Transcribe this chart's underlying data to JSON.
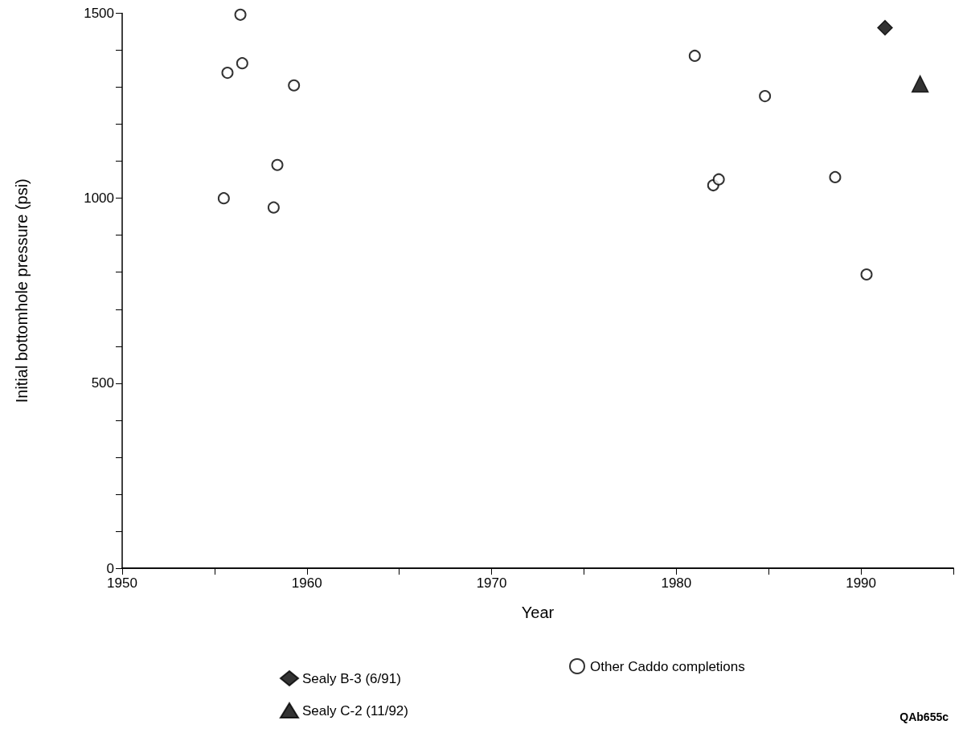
{
  "chart_data": {
    "type": "scatter",
    "xlabel": "Year",
    "ylabel": "Initial bottomhole pressure (psi)",
    "xlim": [
      1950,
      1995
    ],
    "xticks": [
      1950,
      {
        "value": 1955,
        "label": null
      },
      1960,
      {
        "value": 1965,
        "label": null
      },
      1970,
      {
        "value": 1975,
        "label": null
      },
      1980,
      {
        "value": 1985,
        "label": null
      },
      1990,
      {
        "value": 1995,
        "label": null
      }
    ],
    "ylim": [
      0,
      1500
    ],
    "yticks": [
      0,
      {
        "value": 100,
        "label": null
      },
      {
        "value": 200,
        "label": null
      },
      {
        "value": 300,
        "label": null
      },
      {
        "value": 400,
        "label": null
      },
      500,
      {
        "value": 600,
        "label": null
      },
      {
        "value": 700,
        "label": null
      },
      {
        "value": 800,
        "label": null
      },
      {
        "value": 900,
        "label": null
      },
      1000,
      {
        "value": 1100,
        "label": null
      },
      {
        "value": 1200,
        "label": null
      },
      {
        "value": 1300,
        "label": null
      },
      {
        "value": 1400,
        "label": null
      },
      1500
    ],
    "grid": false,
    "legend": "bottom",
    "series": [
      {
        "name": "Sealy B-3 (6/91)",
        "color": "#000000",
        "marker": "diamond",
        "x": [
          1991.3
        ],
        "values": [
          1461
        ]
      },
      {
        "name": "Sealy C-2 (11/92)",
        "color": "#000000",
        "marker": "triangle",
        "x": [
          1993.2
        ],
        "values": [
          1309
        ]
      },
      {
        "name": "Other Caddo completions",
        "color": "#000000",
        "marker": "circle",
        "x": [
          1955.5,
          1955.7,
          1956.4,
          1956.5,
          1959.3,
          1958.4,
          1958.2,
          1981.0,
          1982.0,
          1982.3,
          1984.8,
          1988.6,
          1990.3
        ],
        "values": [
          1000,
          1339,
          1496,
          1365,
          1305,
          1090,
          975,
          1385,
          1035,
          1051,
          1276,
          1057,
          794
        ]
      }
    ],
    "annotations": [
      "QAb655c"
    ]
  }
}
